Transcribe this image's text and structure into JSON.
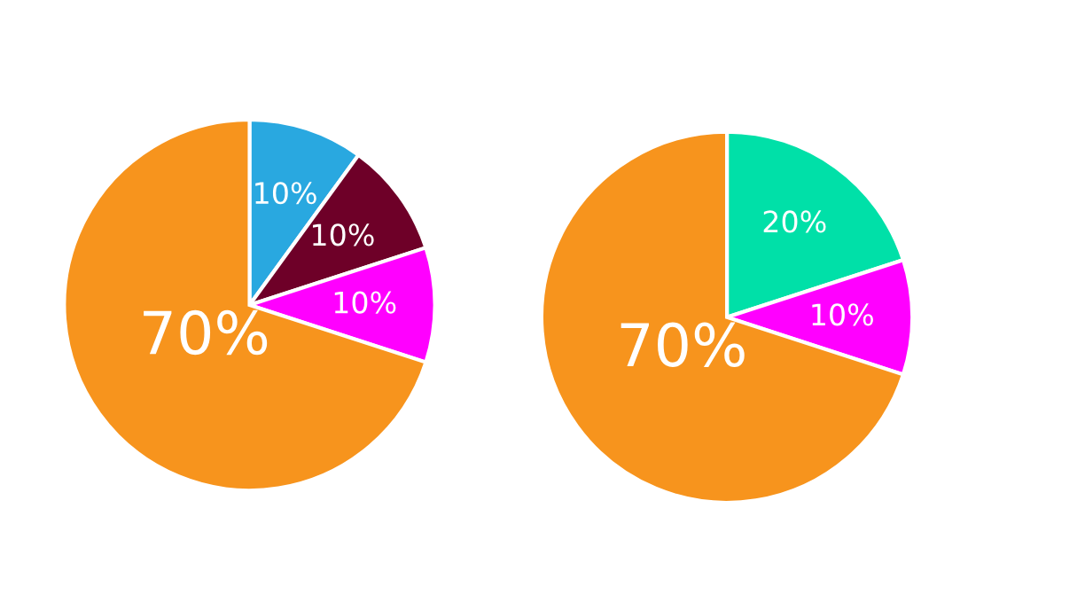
{
  "chart_data": [
    {
      "type": "pie",
      "categories": [
        null,
        null,
        null,
        null
      ],
      "values": [
        10,
        10,
        10,
        70
      ],
      "colors": [
        "#29a8e0",
        "#6e0028",
        "#ff00ff",
        "#f7941d"
      ],
      "value_labels": [
        "10%",
        "10%",
        "10%",
        "70%"
      ]
    },
    {
      "type": "pie",
      "categories": [
        null,
        null,
        null
      ],
      "values": [
        20,
        10,
        70
      ],
      "colors": [
        "#00e0a8",
        "#ff00ff",
        "#f7941d"
      ],
      "value_labels": [
        "20%",
        "10%",
        "70%"
      ]
    }
  ]
}
